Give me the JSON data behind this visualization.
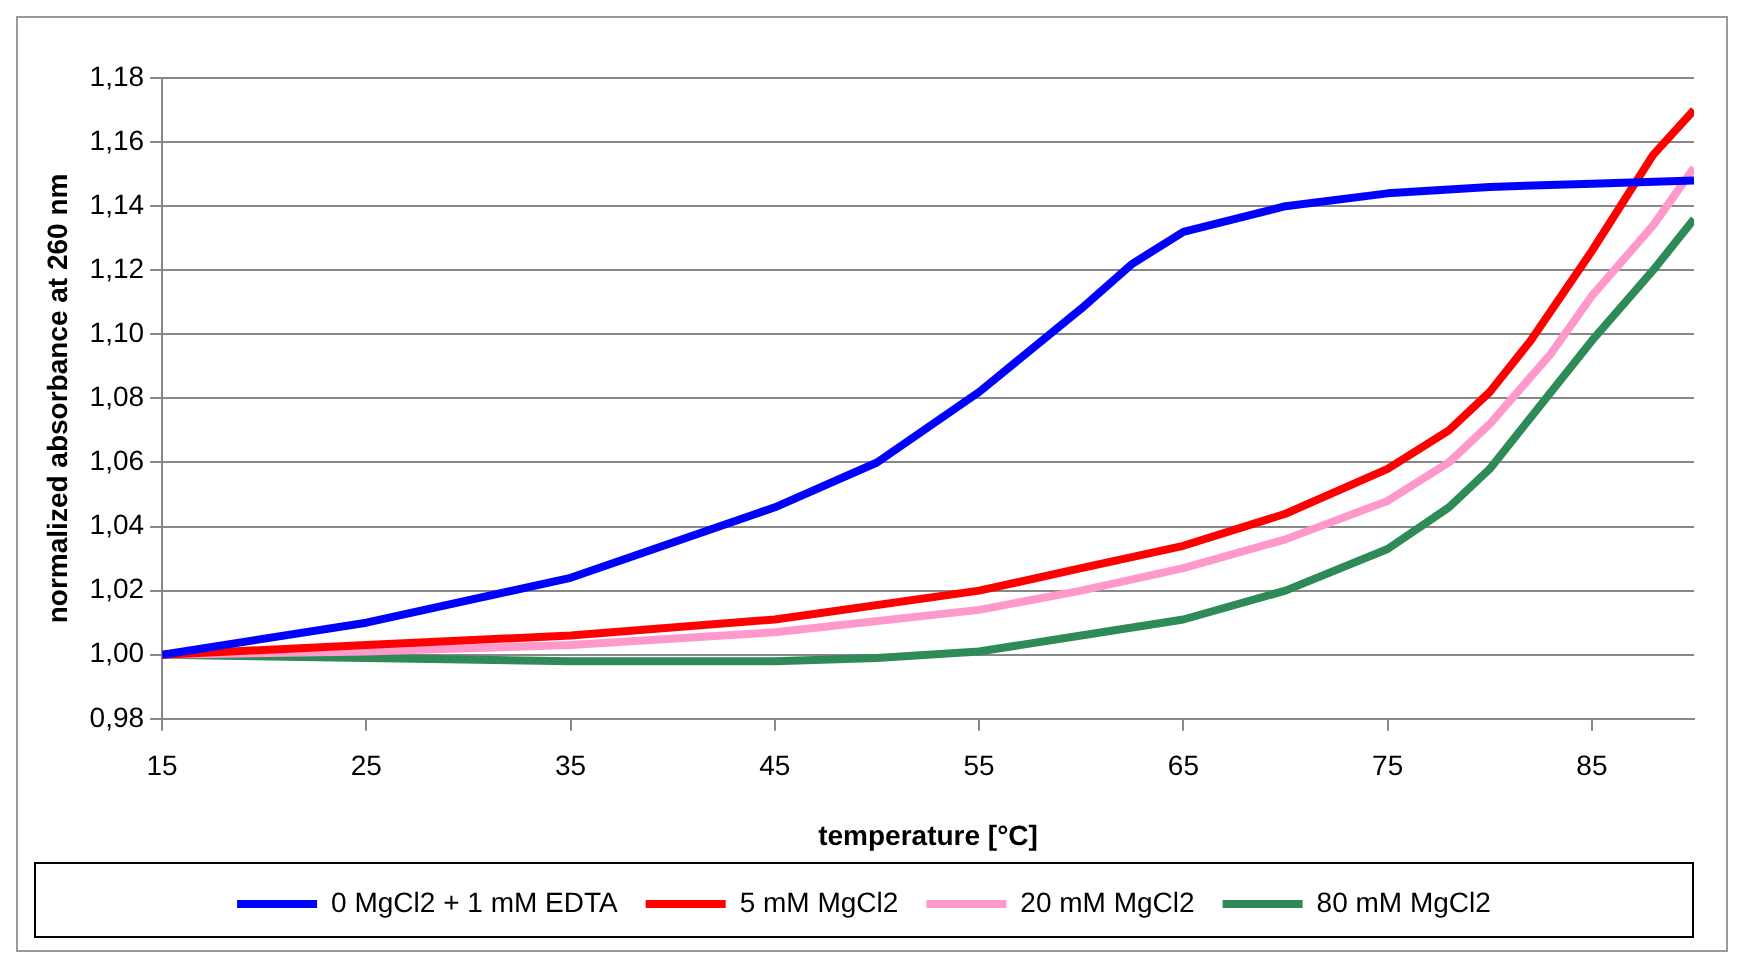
{
  "chart_data": {
    "type": "line",
    "xlabel": "temperature [°C]",
    "ylabel": "normalized absorbance at 260 nm",
    "xlim": [
      15,
      90
    ],
    "xticks": [
      15,
      25,
      35,
      45,
      55,
      65,
      75,
      85
    ],
    "ylim": [
      0.98,
      1.18
    ],
    "yticks": [
      {
        "value": 0.98,
        "label": "0,98"
      },
      {
        "value": 1.0,
        "label": "1,00"
      },
      {
        "value": 1.02,
        "label": "1,02"
      },
      {
        "value": 1.04,
        "label": "1,04"
      },
      {
        "value": 1.06,
        "label": "1,06"
      },
      {
        "value": 1.08,
        "label": "1,08"
      },
      {
        "value": 1.1,
        "label": "1,10"
      },
      {
        "value": 1.12,
        "label": "1,12"
      },
      {
        "value": 1.14,
        "label": "1,14"
      },
      {
        "value": 1.16,
        "label": "1,16"
      },
      {
        "value": 1.18,
        "label": "1,18"
      }
    ],
    "grid": "y",
    "legend": "bottom",
    "marker": "none",
    "line_style": "solid",
    "series": [
      {
        "name": "0 MgCl2 + 1 mM EDTA",
        "color": "#0000ff",
        "x": [
          15,
          25,
          35,
          45,
          50,
          55,
          60,
          62.5,
          65,
          70,
          75,
          80,
          85,
          90
        ],
        "values": [
          1.0,
          1.01,
          1.024,
          1.046,
          1.06,
          1.082,
          1.108,
          1.122,
          1.132,
          1.14,
          1.144,
          1.146,
          1.147,
          1.148
        ]
      },
      {
        "name": "5 mM MgCl2",
        "color": "#ff0000",
        "x": [
          15,
          25,
          35,
          45,
          55,
          60,
          65,
          70,
          75,
          78,
          80,
          82,
          85,
          87,
          88,
          90
        ],
        "values": [
          1.0,
          1.003,
          1.006,
          1.011,
          1.02,
          1.027,
          1.034,
          1.044,
          1.058,
          1.07,
          1.082,
          1.098,
          1.126,
          1.146,
          1.156,
          1.17
        ]
      },
      {
        "name": "20 mM MgCl2",
        "color": "#ff99cc",
        "x": [
          15,
          25,
          35,
          45,
          55,
          60,
          65,
          70,
          75,
          78,
          80,
          83,
          85,
          88,
          90
        ],
        "values": [
          1.0,
          1.001,
          1.003,
          1.007,
          1.014,
          1.02,
          1.027,
          1.036,
          1.048,
          1.06,
          1.072,
          1.094,
          1.112,
          1.134,
          1.152
        ]
      },
      {
        "name": "80 mM MgCl2",
        "color": "#2e8b57",
        "x": [
          15,
          25,
          35,
          45,
          50,
          55,
          60,
          65,
          70,
          75,
          78,
          80,
          83,
          85,
          88,
          90
        ],
        "values": [
          1.0,
          0.999,
          0.998,
          0.998,
          0.999,
          1.001,
          1.006,
          1.011,
          1.02,
          1.033,
          1.046,
          1.058,
          1.082,
          1.098,
          1.12,
          1.136
        ]
      }
    ]
  }
}
